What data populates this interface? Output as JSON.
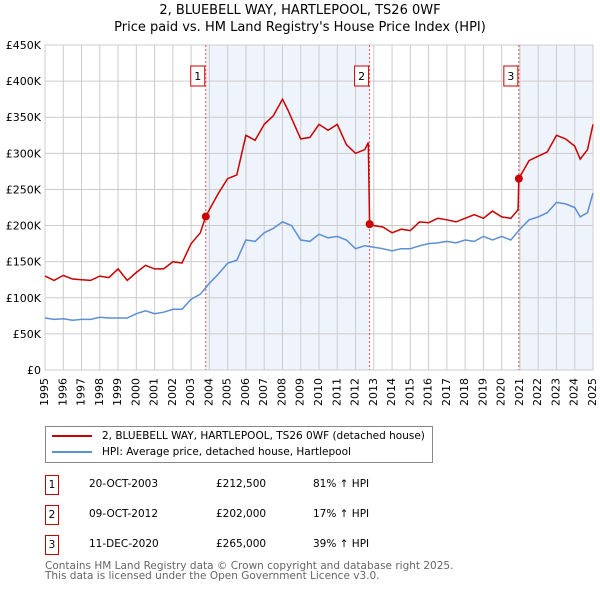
{
  "title": "2, BLUEBELL WAY, HARTLEPOOL, TS26 0WF",
  "subtitle": "Price paid vs. HM Land Registry's House Price Index (HPI)",
  "chart_data": {
    "type": "line",
    "title": "2, BLUEBELL WAY, HARTLEPOOL, TS26 0WF",
    "xlim": [
      1995,
      2025
    ],
    "ylim": [
      0,
      450000
    ],
    "x_ticks": [
      "1995",
      "1996",
      "1997",
      "1998",
      "1999",
      "2000",
      "2001",
      "2002",
      "2003",
      "2004",
      "2005",
      "2006",
      "2007",
      "2008",
      "2009",
      "2010",
      "2011",
      "2012",
      "2013",
      "2014",
      "2015",
      "2016",
      "2017",
      "2018",
      "2019",
      "2020",
      "2021",
      "2022",
      "2023",
      "2024",
      "2025"
    ],
    "y_ticks": [
      {
        "v": 0,
        "label": "£0"
      },
      {
        "v": 50000,
        "label": "£50K"
      },
      {
        "v": 100000,
        "label": "£100K"
      },
      {
        "v": 150000,
        "label": "£150K"
      },
      {
        "v": 200000,
        "label": "£200K"
      },
      {
        "v": 250000,
        "label": "£250K"
      },
      {
        "v": 300000,
        "label": "£300K"
      },
      {
        "v": 350000,
        "label": "£350K"
      },
      {
        "v": 400000,
        "label": "£400K"
      },
      {
        "v": 450000,
        "label": "£450K"
      }
    ],
    "grid": true,
    "shaded_ranges": [
      [
        2003.8,
        2012.77
      ],
      [
        2020.94,
        2025
      ]
    ],
    "series": [
      {
        "name": "2, BLUEBELL WAY, HARTLEPOOL, TS26 0WF (detached house)",
        "color": "#cc0000",
        "x": [
          1995,
          1995.5,
          1996,
          1996.5,
          1997,
          1997.5,
          1998,
          1998.5,
          1999,
          1999.5,
          2000,
          2000.5,
          2001,
          2001.5,
          2002,
          2002.5,
          2003,
          2003.5,
          2003.8,
          2004,
          2004.5,
          2005,
          2005.5,
          2006,
          2006.5,
          2007,
          2007.5,
          2008,
          2008.3,
          2009,
          2009.5,
          2010,
          2010.5,
          2011,
          2011.5,
          2012,
          2012.5,
          2012.7,
          2012.77,
          2013,
          2013.5,
          2014,
          2014.5,
          2015,
          2015.5,
          2016,
          2016.5,
          2017,
          2017.5,
          2018,
          2018.5,
          2019,
          2019.5,
          2020,
          2020.5,
          2020.9,
          2020.94,
          2021.5,
          2022,
          2022.5,
          2023,
          2023.5,
          2024,
          2024.3,
          2024.7,
          2025
        ],
        "y": [
          130000,
          124000,
          131000,
          126000,
          125000,
          124000,
          130000,
          128000,
          140000,
          124000,
          135000,
          145000,
          140000,
          140000,
          150000,
          148000,
          175000,
          190000,
          212500,
          222000,
          245000,
          265000,
          270000,
          325000,
          318000,
          340000,
          352000,
          375000,
          360000,
          320000,
          322000,
          340000,
          332000,
          340000,
          312000,
          300000,
          305000,
          315000,
          202000,
          200000,
          198000,
          190000,
          195000,
          193000,
          205000,
          204000,
          210000,
          208000,
          205000,
          210000,
          215000,
          210000,
          220000,
          212000,
          210000,
          222000,
          265000,
          290000,
          296000,
          302000,
          325000,
          320000,
          310000,
          292000,
          305000,
          340000
        ]
      },
      {
        "name": "HPI: Average price, detached house, Hartlepool",
        "color": "#5b8fd4",
        "x": [
          1995,
          1995.5,
          1996,
          1996.5,
          1997,
          1997.5,
          1998,
          1998.5,
          1999,
          1999.5,
          2000,
          2000.5,
          2001,
          2001.5,
          2002,
          2002.5,
          2003,
          2003.5,
          2004,
          2004.5,
          2005,
          2005.5,
          2006,
          2006.5,
          2007,
          2007.5,
          2008,
          2008.5,
          2009,
          2009.5,
          2010,
          2010.5,
          2011,
          2011.5,
          2012,
          2012.5,
          2013,
          2013.5,
          2014,
          2014.5,
          2015,
          2015.5,
          2016,
          2016.5,
          2017,
          2017.5,
          2018,
          2018.5,
          2019,
          2019.5,
          2020,
          2020.5,
          2021,
          2021.5,
          2022,
          2022.5,
          2023,
          2023.5,
          2024,
          2024.3,
          2024.7,
          2025
        ],
        "y": [
          72000,
          70000,
          71000,
          69000,
          70000,
          70000,
          73000,
          72000,
          72000,
          72000,
          78000,
          82000,
          78000,
          80000,
          84000,
          84000,
          98000,
          105000,
          120000,
          133000,
          148000,
          152000,
          180000,
          178000,
          190000,
          196000,
          205000,
          200000,
          180000,
          178000,
          188000,
          183000,
          185000,
          180000,
          168000,
          172000,
          170000,
          168000,
          165000,
          168000,
          168000,
          172000,
          175000,
          176000,
          178000,
          176000,
          180000,
          178000,
          185000,
          180000,
          185000,
          180000,
          195000,
          208000,
          212000,
          218000,
          232000,
          230000,
          225000,
          212000,
          218000,
          245000
        ]
      }
    ],
    "annotations": [
      {
        "label": "1",
        "x": 2003.8,
        "y": 212500
      },
      {
        "label": "2",
        "x": 2012.77,
        "y": 202000
      },
      {
        "label": "3",
        "x": 2020.94,
        "y": 265000
      }
    ]
  },
  "legend": [
    {
      "label": "2, BLUEBELL WAY, HARTLEPOOL, TS26 0WF (detached house)",
      "color": "#cc0000"
    },
    {
      "label": "HPI: Average price, detached house, Hartlepool",
      "color": "#5b8fd4"
    }
  ],
  "transactions": [
    {
      "num": "1",
      "date": "20-OCT-2003",
      "price": "£212,500",
      "hpi": "81% ↑ HPI"
    },
    {
      "num": "2",
      "date": "09-OCT-2012",
      "price": "£202,000",
      "hpi": "17% ↑ HPI"
    },
    {
      "num": "3",
      "date": "11-DEC-2020",
      "price": "£265,000",
      "hpi": "39% ↑ HPI"
    }
  ],
  "footer": [
    "Contains HM Land Registry data © Crown copyright and database right 2025.",
    "This data is licensed under the Open Government Licence v3.0."
  ]
}
